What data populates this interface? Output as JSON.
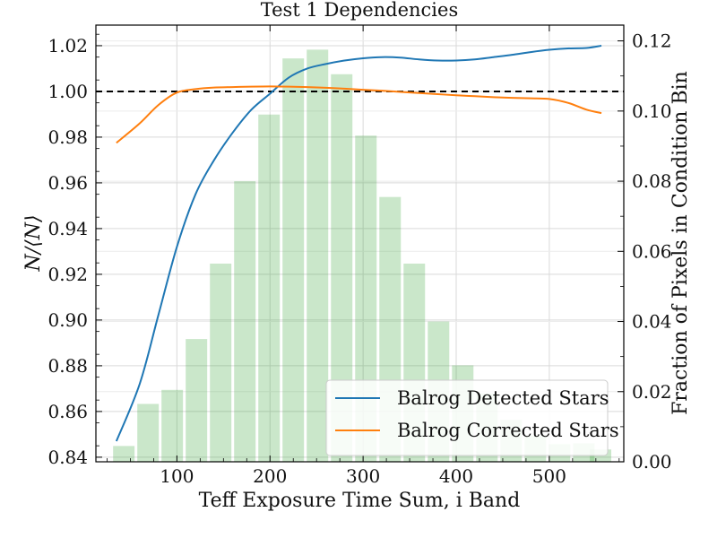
{
  "chart_data": {
    "type": "line",
    "title": "Test 1 Dependencies",
    "xlabel": "Teff Exposure Time Sum, i Band",
    "ylabel": "N/⟨N⟩",
    "y2label": "Fraction of Pixels in Condition Bin",
    "xlim": [
      13,
      580
    ],
    "ylim": [
      0.838,
      1.029
    ],
    "y2lim": [
      0.0,
      0.1245
    ],
    "x_ticks": [
      100,
      200,
      300,
      400,
      500
    ],
    "y_ticks": [
      0.84,
      0.86,
      0.88,
      0.9,
      0.92,
      0.94,
      0.96,
      0.98,
      1.0,
      1.02
    ],
    "y_tick_labels": [
      "0.84",
      "0.86",
      "0.88",
      "0.90",
      "0.92",
      "0.94",
      "0.96",
      "0.98",
      "1.00",
      "1.02"
    ],
    "y2_ticks": [
      0.0,
      0.02,
      0.04,
      0.06,
      0.08,
      0.1,
      0.12
    ],
    "y2_tick_labels": [
      "0.00",
      "0.02",
      "0.04",
      "0.06",
      "0.08",
      "0.10",
      "0.12"
    ],
    "grid": true,
    "reference_line": {
      "y": 1.0,
      "style": "dashed",
      "color": "#000000"
    },
    "legend_position": "lower-right",
    "series": [
      {
        "name": "Balrog Detected Stars",
        "color": "#1f77b4",
        "x": [
          35,
          60,
          80,
          100,
          120,
          140,
          160,
          180,
          200,
          220,
          240,
          260,
          280,
          300,
          320,
          340,
          360,
          380,
          400,
          420,
          440,
          460,
          480,
          500,
          520,
          540,
          556
        ],
        "values": [
          0.847,
          0.872,
          0.902,
          0.932,
          0.955,
          0.97,
          0.982,
          0.992,
          0.999,
          1.006,
          1.01,
          1.012,
          1.0135,
          1.0145,
          1.015,
          1.0148,
          1.014,
          1.0135,
          1.0135,
          1.014,
          1.015,
          1.016,
          1.0172,
          1.0182,
          1.0188,
          1.019,
          1.02
        ]
      },
      {
        "name": "Balrog Corrected Stars",
        "color": "#ff7f0e",
        "x": [
          35,
          60,
          80,
          100,
          120,
          140,
          160,
          180,
          200,
          220,
          240,
          260,
          280,
          300,
          320,
          340,
          360,
          380,
          400,
          420,
          440,
          460,
          480,
          500,
          520,
          540,
          556
        ],
        "values": [
          0.9775,
          0.986,
          0.994,
          0.9995,
          1.001,
          1.0017,
          1.0019,
          1.0021,
          1.0022,
          1.0021,
          1.0019,
          1.0016,
          1.0012,
          1.0007,
          1.0003,
          0.9998,
          0.9993,
          0.9988,
          0.9983,
          0.9979,
          0.9975,
          0.9972,
          0.997,
          0.9967,
          0.995,
          0.992,
          0.9905
        ]
      }
    ],
    "histogram": {
      "name": "Fraction of Pixels in Condition Bin",
      "axis": "right",
      "color": "#2ca02c",
      "opacity": 0.25,
      "bin_width": 25,
      "centers": [
        43,
        69,
        95,
        121,
        147,
        173,
        199,
        225,
        251,
        277,
        303,
        329,
        355,
        381,
        407,
        433,
        459,
        485,
        511,
        537,
        555
      ],
      "values": [
        0.0045,
        0.0165,
        0.0205,
        0.035,
        0.0565,
        0.08,
        0.099,
        0.115,
        0.1175,
        0.1105,
        0.093,
        0.0755,
        0.0565,
        0.04,
        0.0275,
        0.0195,
        0.012,
        0.0075,
        0.005,
        0.0053,
        0.0035
      ]
    }
  }
}
